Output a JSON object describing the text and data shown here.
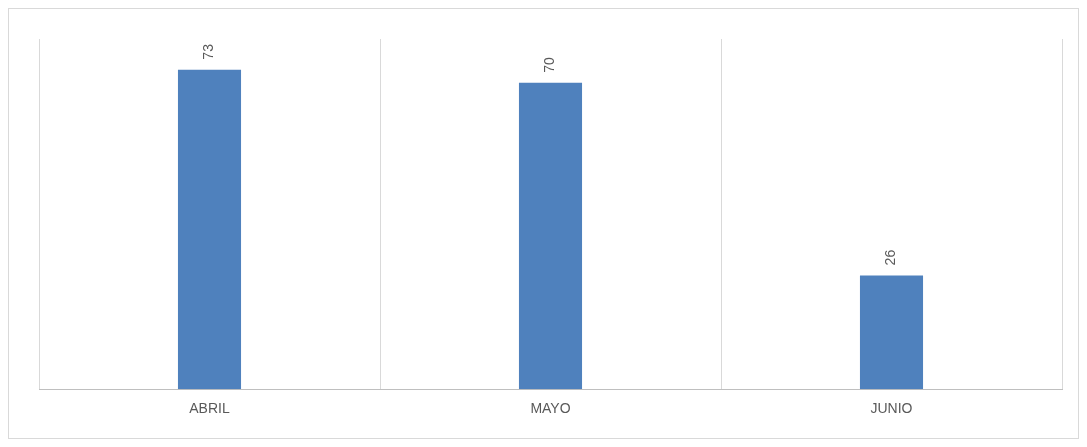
{
  "chart_data": {
    "type": "bar",
    "categories": [
      "ABRIL",
      "MAYO",
      "JUNIO"
    ],
    "values": [
      73,
      70,
      26
    ],
    "color": "#4f81bd",
    "ylim": [
      0,
      80
    ],
    "tick_labels": "x",
    "grid": "x",
    "data_labels": true,
    "legend": false
  }
}
